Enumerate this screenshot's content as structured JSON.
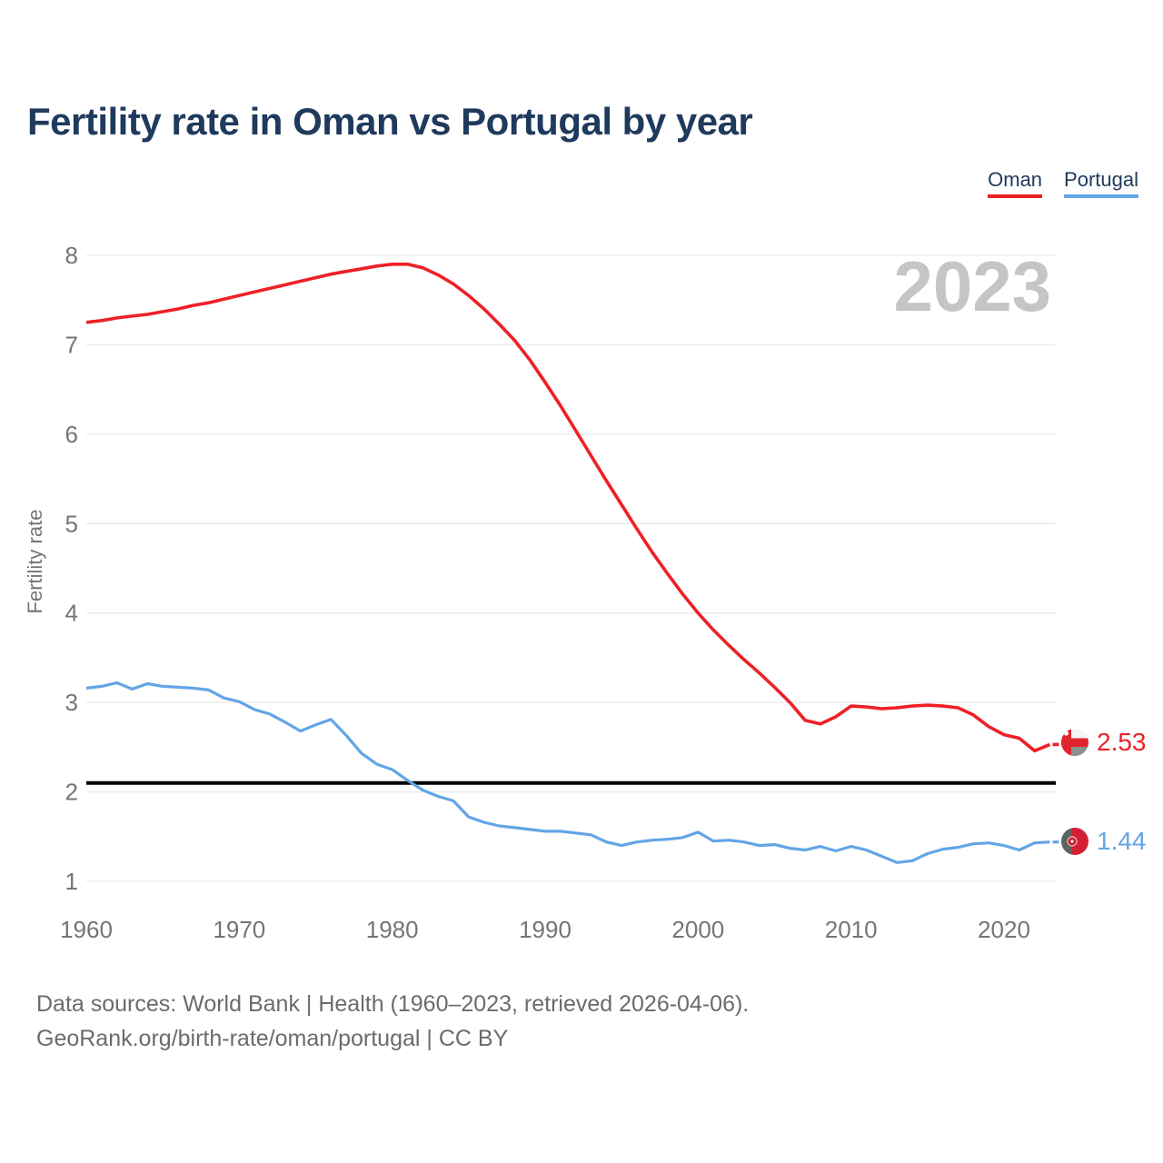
{
  "title": "Fertility rate in Oman vs Portugal by year",
  "legend": {
    "oman": {
      "label": "Oman",
      "color": "#ee2026"
    },
    "portugal": {
      "label": "Portugal",
      "color": "#63a5e6"
    }
  },
  "watermark": "2023",
  "end_labels": {
    "oman": "2.53",
    "portugal": "1.44"
  },
  "footer": {
    "line1": "Data sources: World Bank | Health (1960–2023, retrieved 2026-04-06).",
    "line2": "GeoRank.org/birth-rate/oman/portugal | CC BY"
  },
  "colors": {
    "oman": "#ee2026",
    "portugal": "#63a5e6",
    "reference_line": "#000000",
    "grid": "#e9e9e9",
    "axis_text": "#757575",
    "title_text": "#1f3a5c",
    "watermark": "#c5c5c5",
    "footer_text": "#6b6b6b"
  },
  "chart_data": {
    "type": "line",
    "title": "Fertility rate in Oman vs Portugal by year",
    "xlabel": "",
    "ylabel": "Fertility rate",
    "xlim": [
      1960,
      2023
    ],
    "ylim": [
      1,
      8
    ],
    "x_ticks": [
      1960,
      1970,
      1980,
      1990,
      2000,
      2010,
      2020
    ],
    "y_ticks": [
      1,
      2,
      3,
      4,
      5,
      6,
      7,
      8
    ],
    "grid": "horizontal",
    "legend_position": "top-right",
    "reference_line": {
      "value": 2.1
    },
    "x": [
      1960,
      1961,
      1962,
      1963,
      1964,
      1965,
      1966,
      1967,
      1968,
      1969,
      1970,
      1971,
      1972,
      1973,
      1974,
      1975,
      1976,
      1977,
      1978,
      1979,
      1980,
      1981,
      1982,
      1983,
      1984,
      1985,
      1986,
      1987,
      1988,
      1989,
      1990,
      1991,
      1992,
      1993,
      1994,
      1995,
      1996,
      1997,
      1998,
      1999,
      2000,
      2001,
      2002,
      2003,
      2004,
      2005,
      2006,
      2007,
      2008,
      2009,
      2010,
      2011,
      2012,
      2013,
      2014,
      2015,
      2016,
      2017,
      2018,
      2019,
      2020,
      2021,
      2022,
      2023
    ],
    "series": [
      {
        "name": "Oman",
        "color": "#ee2026",
        "end_value": 2.53,
        "values": [
          7.25,
          7.27,
          7.3,
          7.32,
          7.34,
          7.37,
          7.4,
          7.44,
          7.47,
          7.51,
          7.55,
          7.59,
          7.63,
          7.67,
          7.71,
          7.75,
          7.79,
          7.82,
          7.85,
          7.88,
          7.9,
          7.9,
          7.86,
          7.78,
          7.68,
          7.55,
          7.4,
          7.23,
          7.05,
          6.83,
          6.58,
          6.32,
          6.04,
          5.76,
          5.48,
          5.21,
          4.94,
          4.68,
          4.44,
          4.21,
          4.0,
          3.81,
          3.64,
          3.48,
          3.33,
          3.17,
          3.0,
          2.8,
          2.76,
          2.84,
          2.96,
          2.95,
          2.93,
          2.94,
          2.96,
          2.97,
          2.96,
          2.94,
          2.86,
          2.73,
          2.64,
          2.6,
          2.46,
          2.53
        ]
      },
      {
        "name": "Portugal",
        "color": "#63a5e6",
        "end_value": 1.44,
        "values": [
          3.16,
          3.18,
          3.22,
          3.15,
          3.21,
          3.18,
          3.17,
          3.16,
          3.14,
          3.05,
          3.01,
          2.92,
          2.87,
          2.78,
          2.68,
          2.75,
          2.81,
          2.63,
          2.43,
          2.31,
          2.25,
          2.13,
          2.02,
          1.95,
          1.9,
          1.72,
          1.66,
          1.62,
          1.6,
          1.58,
          1.56,
          1.56,
          1.54,
          1.52,
          1.44,
          1.4,
          1.44,
          1.46,
          1.47,
          1.49,
          1.55,
          1.45,
          1.46,
          1.44,
          1.4,
          1.41,
          1.37,
          1.35,
          1.39,
          1.34,
          1.39,
          1.35,
          1.28,
          1.21,
          1.23,
          1.31,
          1.36,
          1.38,
          1.42,
          1.43,
          1.4,
          1.35,
          1.43,
          1.44
        ]
      }
    ]
  }
}
